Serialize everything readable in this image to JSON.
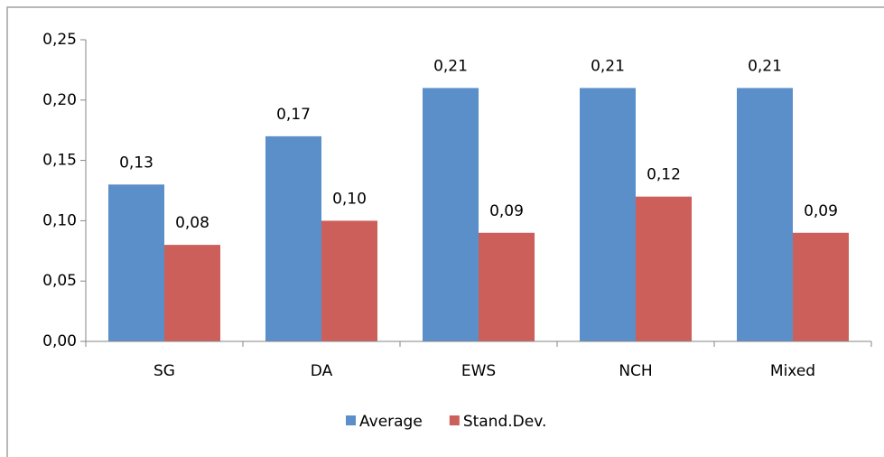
{
  "chart_data": {
    "type": "bar",
    "categories": [
      "SG",
      "DA",
      "EWS",
      "NCH",
      "Mixed"
    ],
    "series": [
      {
        "name": "Average",
        "color": "#5b8fc9",
        "values": [
          0.13,
          0.17,
          0.21,
          0.21,
          0.21
        ],
        "value_labels": [
          "0,13",
          "0,17",
          "0,21",
          "0,21",
          "0,21"
        ]
      },
      {
        "name": "Stand.Dev.",
        "color": "#cd5f5a",
        "values": [
          0.08,
          0.1,
          0.09,
          0.12,
          0.09
        ],
        "value_labels": [
          "0,08",
          "0,10",
          "0,09",
          "0,12",
          "0,09"
        ]
      }
    ],
    "ylim": [
      0,
      0.25
    ],
    "yticks": [
      {
        "value": 0,
        "label": "0,00"
      },
      {
        "value": 0.05,
        "label": "0,05"
      },
      {
        "value": 0.1,
        "label": "0,10"
      },
      {
        "value": 0.15,
        "label": "0,15"
      },
      {
        "value": 0.2,
        "label": "0,20"
      },
      {
        "value": 0.25,
        "label": "0,25"
      }
    ],
    "grid": false,
    "legend": "bottom"
  }
}
